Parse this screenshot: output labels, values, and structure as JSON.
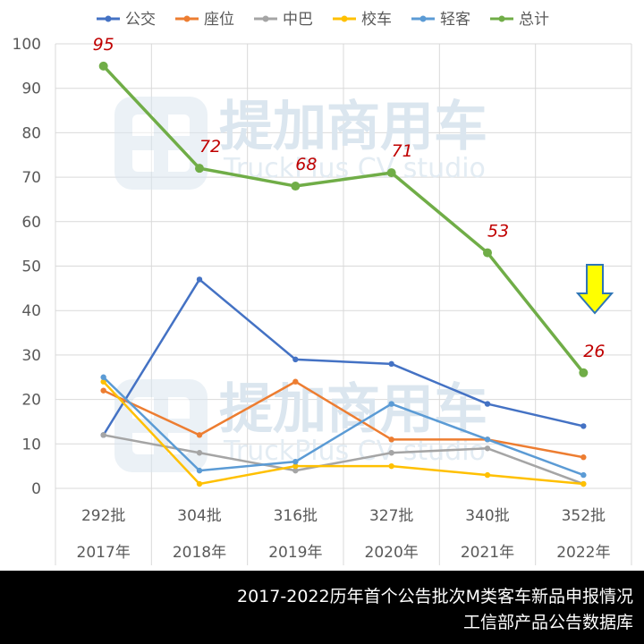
{
  "chart_data": {
    "type": "line",
    "categories": [
      "292批",
      "304批",
      "316批",
      "327批",
      "340批",
      "352批"
    ],
    "categories_years": [
      "2017年",
      "2018年",
      "2019年",
      "2020年",
      "2021年",
      "2022年"
    ],
    "ylim": [
      0,
      100
    ],
    "yticks": [
      "0",
      "10",
      "20",
      "30",
      "40",
      "50",
      "60",
      "70",
      "80",
      "90",
      "100"
    ],
    "grid": true,
    "legend_position": "top",
    "series": [
      {
        "name": "公交",
        "color": "#4472c4",
        "values": [
          12,
          47,
          29,
          28,
          19,
          14
        ]
      },
      {
        "name": "座位",
        "color": "#ed7d31",
        "values": [
          22,
          12,
          24,
          11,
          11,
          7
        ]
      },
      {
        "name": "中巴",
        "color": "#a5a5a5",
        "values": [
          12,
          8,
          4,
          8,
          9,
          1
        ]
      },
      {
        "name": "校车",
        "color": "#ffc000",
        "values": [
          24,
          1,
          5,
          5,
          3,
          1
        ]
      },
      {
        "name": "轻客",
        "color": "#5b9bd5",
        "values": [
          25,
          4,
          6,
          19,
          11,
          3
        ]
      },
      {
        "name": "总计",
        "color": "#70ad47",
        "values": [
          95,
          72,
          68,
          71,
          53,
          26
        ]
      }
    ],
    "data_labels": [
      "95",
      "72",
      "68",
      "71",
      "53",
      "26"
    ],
    "annotation": "down-arrow-icon"
  },
  "watermark": {
    "cn": "提加商用车",
    "en": "TruckPlus CV studio"
  },
  "caption": {
    "line1": "2017-2022历年首个公告批次M类客车新品申报情况",
    "line2": "工信部产品公告数据库"
  }
}
